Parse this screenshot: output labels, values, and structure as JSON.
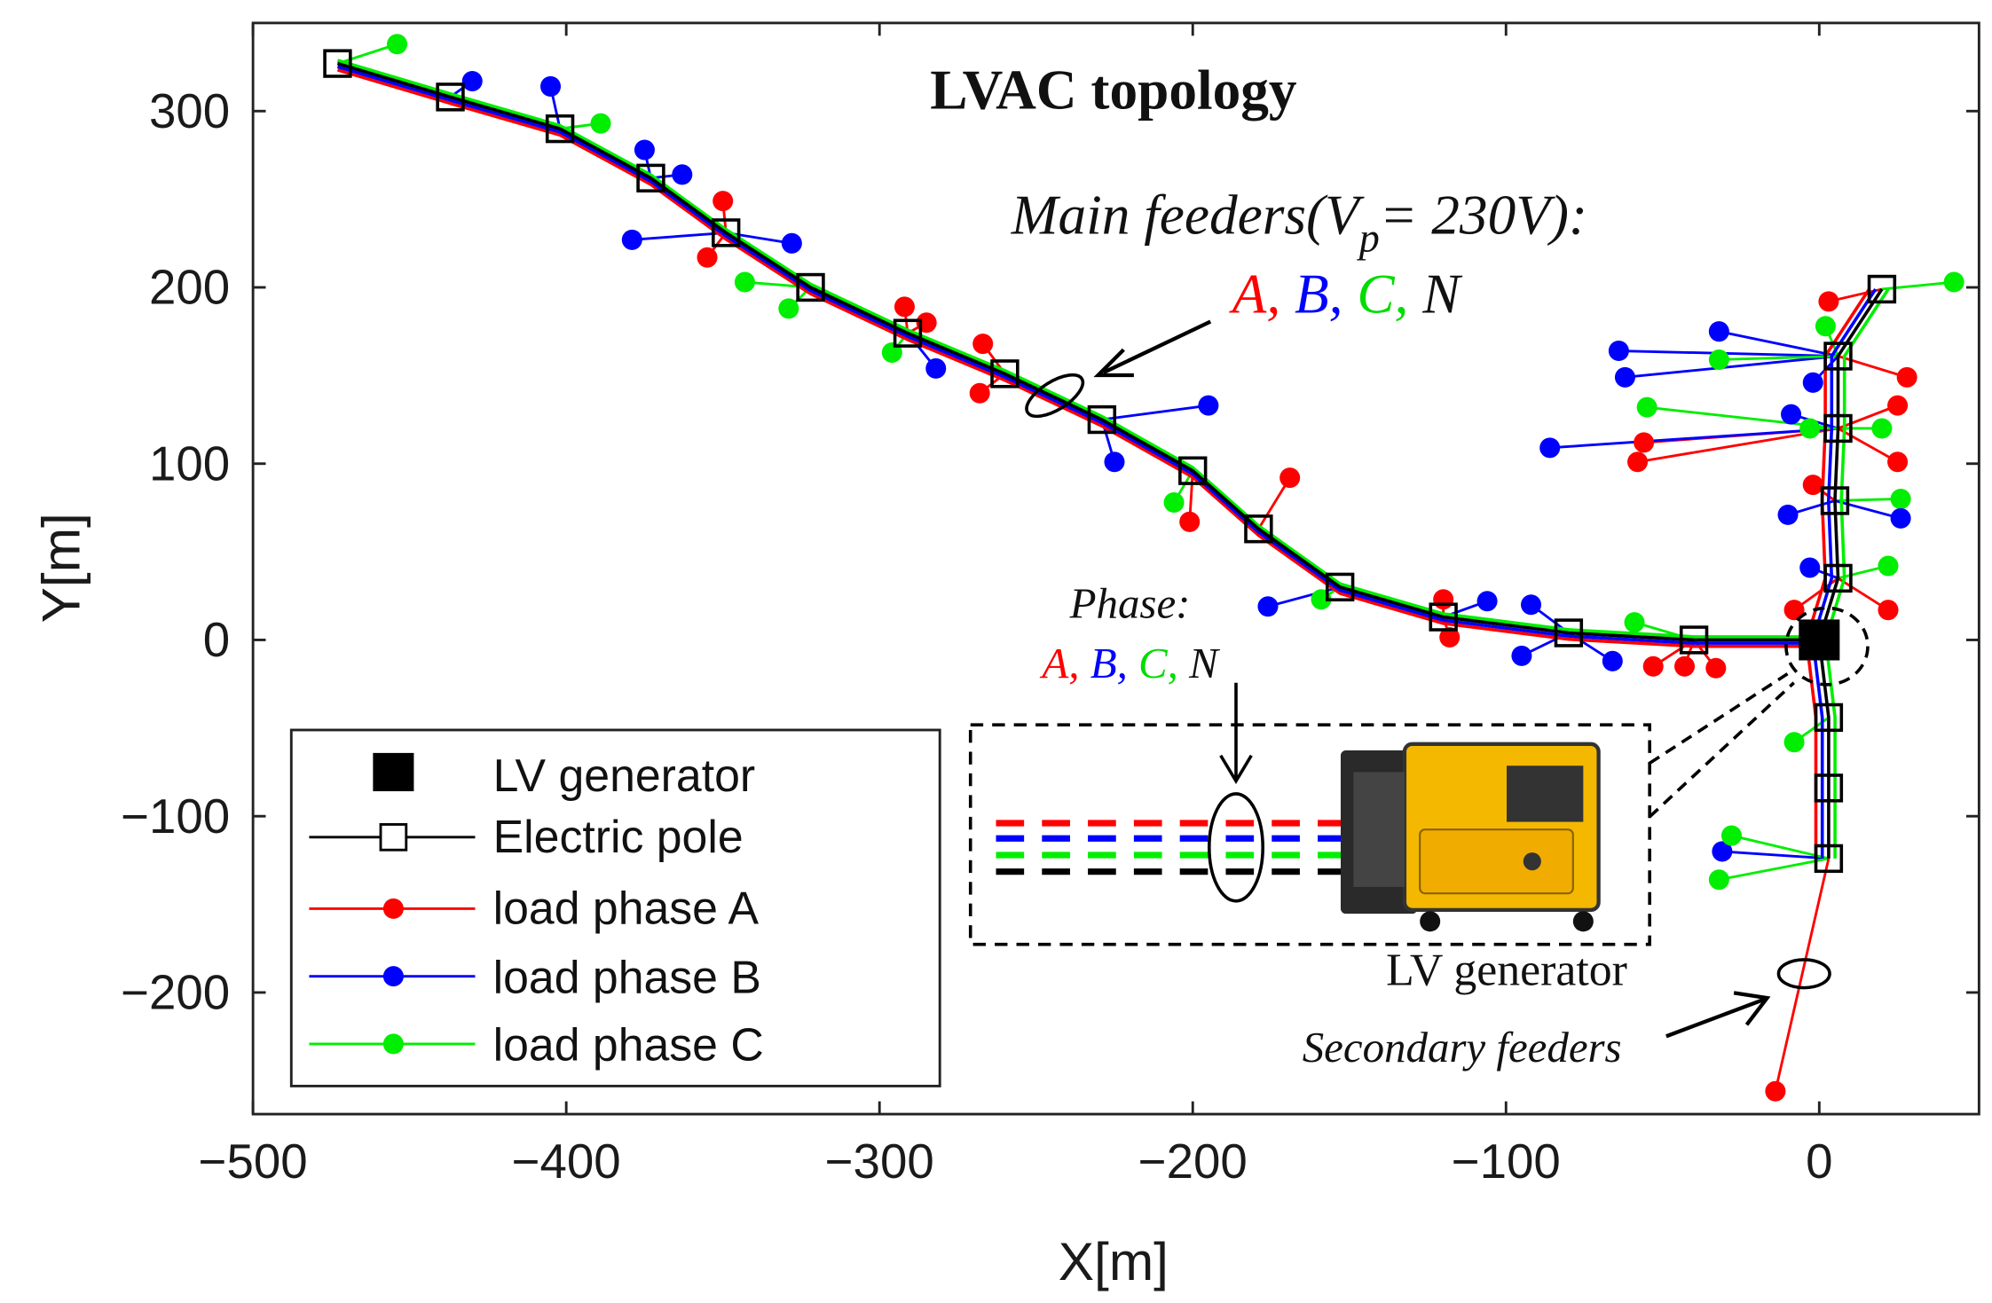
{
  "chart_data": {
    "type": "scatter",
    "title": "LVAC topology",
    "xlabel": "X[m]",
    "ylabel": "Y[m]",
    "xlim": [
      -500,
      51
    ],
    "ylim": [
      -269,
      350
    ],
    "xticks": [
      -500,
      -400,
      -300,
      -200,
      -100,
      0
    ],
    "yticks": [
      -200,
      -100,
      0,
      100,
      200,
      300
    ],
    "xtick_labels": [
      "−500",
      "−400",
      "−300",
      "−200",
      "−100",
      "0"
    ],
    "ytick_labels": [
      "−200",
      "−100",
      "0",
      "100",
      "200",
      "300"
    ],
    "grid": false,
    "legend_position": "bottom-left",
    "legend": [
      "LV generator",
      "Electric pole",
      "load phase A",
      "load phase B",
      "load phase C"
    ],
    "colors": {
      "A": "#ff0000",
      "B": "#0000ff",
      "C": "#00ee00",
      "N": "#000000"
    },
    "generator": [
      0,
      0
    ],
    "main_poles": [
      [
        -473,
        327
      ],
      [
        -437,
        308
      ],
      [
        -402,
        290
      ],
      [
        -373,
        262
      ],
      [
        -349,
        231
      ],
      [
        -322,
        200
      ],
      [
        -291,
        174
      ],
      [
        -260,
        151
      ],
      [
        -229,
        125
      ],
      [
        -200,
        96
      ],
      [
        -179,
        63
      ],
      [
        -153,
        30
      ],
      [
        -120,
        13
      ],
      [
        -80,
        4
      ],
      [
        -40,
        0
      ],
      [
        0,
        0
      ]
    ],
    "north_poles": [
      [
        0,
        0
      ],
      [
        6,
        35
      ],
      [
        5,
        79
      ],
      [
        6,
        120
      ],
      [
        6,
        161
      ],
      [
        20,
        199
      ]
    ],
    "south_poles": [
      [
        0,
        0
      ],
      [
        3,
        -44
      ],
      [
        3,
        -84
      ],
      [
        3,
        -124
      ]
    ],
    "loads": [
      {
        "p": "C",
        "x": -454,
        "y": 338,
        "to": [
          -473,
          327
        ]
      },
      {
        "p": "B",
        "x": -430,
        "y": 317,
        "to": [
          -437,
          308
        ]
      },
      {
        "p": "B",
        "x": -405,
        "y": 314,
        "to": [
          -402,
          290
        ]
      },
      {
        "p": "C",
        "x": -389,
        "y": 293,
        "to": [
          -402,
          290
        ]
      },
      {
        "p": "B",
        "x": -375,
        "y": 278,
        "to": [
          -373,
          262
        ]
      },
      {
        "p": "B",
        "x": -363,
        "y": 264,
        "to": [
          -373,
          262
        ]
      },
      {
        "p": "A",
        "x": -350,
        "y": 249,
        "to": [
          -349,
          231
        ]
      },
      {
        "p": "A",
        "x": -355,
        "y": 217,
        "to": [
          -349,
          231
        ]
      },
      {
        "p": "B",
        "x": -379,
        "y": 227,
        "to": [
          -349,
          231
        ]
      },
      {
        "p": "B",
        "x": -328,
        "y": 225,
        "to": [
          -349,
          231
        ]
      },
      {
        "p": "C",
        "x": -343,
        "y": 203,
        "to": [
          -322,
          200
        ]
      },
      {
        "p": "C",
        "x": -329,
        "y": 188,
        "to": [
          -322,
          200
        ]
      },
      {
        "p": "A",
        "x": -292,
        "y": 189,
        "to": [
          -291,
          174
        ]
      },
      {
        "p": "A",
        "x": -285,
        "y": 180,
        "to": [
          -291,
          174
        ]
      },
      {
        "p": "C",
        "x": -296,
        "y": 163,
        "to": [
          -291,
          174
        ]
      },
      {
        "p": "B",
        "x": -282,
        "y": 154,
        "to": [
          -291,
          174
        ]
      },
      {
        "p": "A",
        "x": -267,
        "y": 168,
        "to": [
          -260,
          151
        ]
      },
      {
        "p": "A",
        "x": -268,
        "y": 140,
        "to": [
          -260,
          151
        ]
      },
      {
        "p": "B",
        "x": -195,
        "y": 133,
        "to": [
          -229,
          125
        ]
      },
      {
        "p": "B",
        "x": -225,
        "y": 101,
        "to": [
          -229,
          125
        ]
      },
      {
        "p": "C",
        "x": -206,
        "y": 78,
        "to": [
          -200,
          96
        ]
      },
      {
        "p": "A",
        "x": -201,
        "y": 67,
        "to": [
          -200,
          96
        ]
      },
      {
        "p": "A",
        "x": -169,
        "y": 92,
        "to": [
          -179,
          63
        ]
      },
      {
        "p": "B",
        "x": -176,
        "y": 19,
        "to": [
          -153,
          30
        ]
      },
      {
        "p": "C",
        "x": -159,
        "y": 23,
        "to": [
          -153,
          30
        ]
      },
      {
        "p": "A",
        "x": -120,
        "y": 23,
        "to": [
          -120,
          13
        ]
      },
      {
        "p": "A",
        "x": -118,
        "y": 1.5,
        "to": [
          -120,
          13
        ]
      },
      {
        "p": "B",
        "x": -106,
        "y": 22,
        "to": [
          -120,
          13
        ]
      },
      {
        "p": "B",
        "x": -92,
        "y": 20,
        "to": [
          -80,
          4
        ]
      },
      {
        "p": "B",
        "x": -95,
        "y": -9,
        "to": [
          -80,
          4
        ]
      },
      {
        "p": "B",
        "x": -66,
        "y": -12,
        "to": [
          -80,
          4
        ]
      },
      {
        "p": "C",
        "x": -59,
        "y": 10,
        "to": [
          -40,
          0
        ]
      },
      {
        "p": "A",
        "x": -53,
        "y": -15,
        "to": [
          -40,
          0
        ]
      },
      {
        "p": "A",
        "x": -43,
        "y": -15,
        "to": [
          -40,
          0
        ]
      },
      {
        "p": "A",
        "x": -33,
        "y": -16,
        "to": [
          -40,
          0
        ]
      },
      {
        "p": "A",
        "x": -8,
        "y": 17,
        "to": [
          6,
          35
        ]
      },
      {
        "p": "C",
        "x": 22,
        "y": 42,
        "to": [
          6,
          35
        ]
      },
      {
        "p": "A",
        "x": 22,
        "y": 17,
        "to": [
          6,
          35
        ]
      },
      {
        "p": "B",
        "x": -3,
        "y": 41,
        "to": [
          6,
          35
        ]
      },
      {
        "p": "B",
        "x": -10,
        "y": 71,
        "to": [
          5,
          79
        ]
      },
      {
        "p": "C",
        "x": 26,
        "y": 80,
        "to": [
          5,
          79
        ]
      },
      {
        "p": "B",
        "x": 26,
        "y": 69,
        "to": [
          5,
          79
        ]
      },
      {
        "p": "A",
        "x": -2,
        "y": 88,
        "to": [
          5,
          79
        ]
      },
      {
        "p": "A",
        "x": -56,
        "y": 112,
        "to": [
          6,
          120
        ]
      },
      {
        "p": "A",
        "x": -58,
        "y": 101,
        "to": [
          6,
          120
        ]
      },
      {
        "p": "C",
        "x": -55,
        "y": 132,
        "to": [
          6,
          120
        ]
      },
      {
        "p": "B",
        "x": -86,
        "y": 109,
        "to": [
          6,
          120
        ]
      },
      {
        "p": "B",
        "x": -9,
        "y": 128,
        "to": [
          6,
          120
        ]
      },
      {
        "p": "C",
        "x": -3,
        "y": 120,
        "to": [
          6,
          120
        ]
      },
      {
        "p": "C",
        "x": 20,
        "y": 120,
        "to": [
          6,
          120
        ]
      },
      {
        "p": "A",
        "x": 25,
        "y": 101,
        "to": [
          6,
          120
        ]
      },
      {
        "p": "A",
        "x": 25,
        "y": 133,
        "to": [
          6,
          120
        ]
      },
      {
        "p": "B",
        "x": -64,
        "y": 164,
        "to": [
          6,
          161
        ]
      },
      {
        "p": "B",
        "x": -62,
        "y": 149,
        "to": [
          6,
          161
        ]
      },
      {
        "p": "B",
        "x": -32,
        "y": 175,
        "to": [
          6,
          161
        ]
      },
      {
        "p": "C",
        "x": -32,
        "y": 159,
        "to": [
          6,
          161
        ]
      },
      {
        "p": "B",
        "x": -2,
        "y": 146,
        "to": [
          6,
          161
        ]
      },
      {
        "p": "C",
        "x": 2,
        "y": 178,
        "to": [
          6,
          161
        ]
      },
      {
        "p": "A",
        "x": 28,
        "y": 149,
        "to": [
          6,
          161
        ]
      },
      {
        "p": "A",
        "x": 3,
        "y": 192,
        "to": [
          20,
          199
        ]
      },
      {
        "p": "C",
        "x": 43,
        "y": 203,
        "to": [
          20,
          199
        ]
      },
      {
        "p": "C",
        "x": -8,
        "y": -58,
        "to": [
          3,
          -44
        ]
      },
      {
        "p": "B",
        "x": -31,
        "y": -120,
        "to": [
          3,
          -124
        ]
      },
      {
        "p": "C",
        "x": -28,
        "y": -111,
        "to": [
          3,
          -124
        ]
      },
      {
        "p": "C",
        "x": -32,
        "y": -136,
        "to": [
          3,
          -124
        ]
      },
      {
        "p": "A",
        "x": -14,
        "y": -256,
        "to": [
          3,
          -124
        ]
      }
    ],
    "annotations": {
      "main_feeders": "Main feeders(V",
      "main_feeders_sub": "p",
      "main_feeders_end": "= 230V):",
      "phases": [
        "A,",
        "B,",
        "C,",
        "N"
      ],
      "phase_label": "Phase:",
      "generator_label": "LV generator",
      "secondary_feeders": "Secondary feeders"
    }
  }
}
